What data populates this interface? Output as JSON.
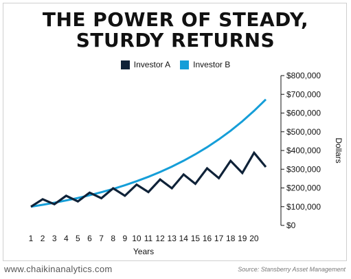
{
  "footer": {
    "website": "www.chaikinanalytics.com",
    "source": "Source: Stansberry Asset Management"
  },
  "chart_data": {
    "type": "line",
    "title_lines": [
      "THE POWER OF STEADY,",
      "STURDY RETURNS"
    ],
    "xlabel": "Years",
    "ylabel": "Dollars",
    "x": [
      1,
      2,
      3,
      4,
      5,
      6,
      7,
      8,
      9,
      10,
      11,
      12,
      13,
      14,
      15,
      16,
      17,
      18,
      19,
      20,
      21
    ],
    "x_tick_labels": [
      "1",
      "2",
      "3",
      "4",
      "5",
      "6",
      "7",
      "8",
      "9",
      "10",
      "11",
      "12",
      "13",
      "14",
      "15",
      "16",
      "17",
      "18",
      "19",
      "20"
    ],
    "y_ticks": [
      0,
      100000,
      200000,
      300000,
      400000,
      500000,
      600000,
      700000,
      800000
    ],
    "y_tick_labels": [
      "$0",
      "$100,000",
      "$200,000",
      "$300,000",
      "$400,000",
      "$500,000",
      "$600,000",
      "$700,000",
      "$800,000"
    ],
    "ylim": [
      0,
      800000
    ],
    "y_axis_position": "right",
    "grid": false,
    "legend_position": "top",
    "series": [
      {
        "name": "Investor A",
        "color": "#0f2238",
        "values": [
          100000,
          140000,
          113000,
          158000,
          128000,
          175000,
          145000,
          198000,
          158000,
          218000,
          178000,
          245000,
          198000,
          272000,
          222000,
          305000,
          252000,
          345000,
          280000,
          388000,
          312000
        ]
      },
      {
        "name": "Investor B",
        "color": "#159ed8",
        "values": [
          100000,
          110000,
          121000,
          133100,
          146410,
          161051,
          177156,
          194872,
          214359,
          235795,
          259374,
          285312,
          313843,
          345227,
          379750,
          417725,
          459497,
          505447,
          555992,
          611591,
          672750
        ]
      }
    ]
  }
}
